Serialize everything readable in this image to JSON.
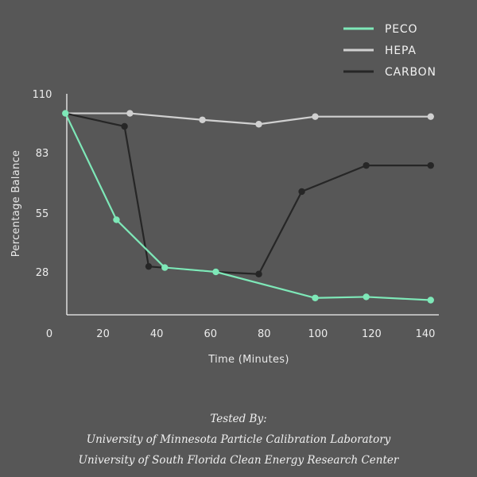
{
  "chart_data": {
    "type": "line",
    "xlabel": "Time (Minutes)",
    "ylabel": "Percentage Balance",
    "x_ticks": [
      "0",
      "20",
      "40",
      "60",
      "80",
      "100",
      "120",
      "140"
    ],
    "y_ticks": [
      "28",
      "55",
      "83",
      "110"
    ],
    "xlim": [
      0,
      143
    ],
    "ylim": [
      8,
      110
    ],
    "legend_position": "top-right",
    "series": [
      {
        "name": "PECO",
        "color": "#7ee8b8",
        "points": [
          [
            6,
            101
          ],
          [
            25,
            52
          ],
          [
            43,
            30
          ],
          [
            62,
            28
          ],
          [
            99,
            16
          ],
          [
            118,
            16.5
          ],
          [
            142,
            15
          ]
        ]
      },
      {
        "name": "HEPA",
        "color": "#d0d0d0",
        "points": [
          [
            6,
            101
          ],
          [
            30,
            101
          ],
          [
            57,
            98
          ],
          [
            78,
            96
          ],
          [
            99,
            99.5
          ],
          [
            142,
            99.5
          ]
        ]
      },
      {
        "name": "CARBON",
        "color": "#262626",
        "points": [
          [
            6,
            101
          ],
          [
            28,
            95
          ],
          [
            37,
            30.5
          ],
          [
            62,
            28
          ],
          [
            78,
            27
          ],
          [
            94,
            65
          ],
          [
            118,
            77
          ],
          [
            142,
            77
          ]
        ]
      }
    ]
  },
  "credits": {
    "heading": "Tested By:",
    "line1": "University of Minnesota Particle Calibration Laboratory",
    "line2": "University of South Florida Clean Energy Research Center"
  }
}
